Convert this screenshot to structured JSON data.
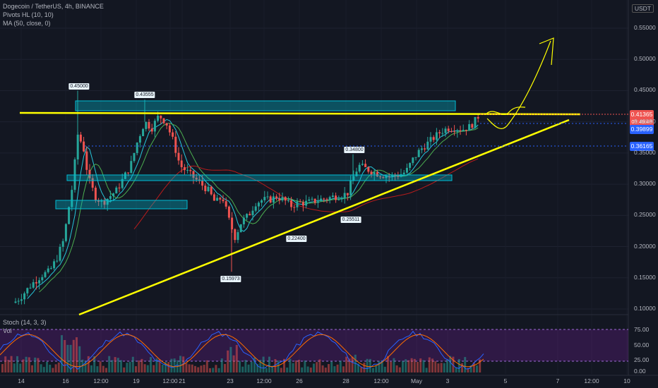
{
  "legend": {
    "title": "Dogecoin / TetherUS, 4h, BINANCE",
    "indicator1": "Pivots HL (10, 10)",
    "indicator2": "MA (50, close, 0)",
    "stoch": "Stoch (14, 3, 3)",
    "vol": "Vol"
  },
  "currency": "USDT",
  "price_badges": {
    "current": "0.41365",
    "countdown": "03:49:48",
    "level_a": "0.39899",
    "level_b": "0.36165"
  },
  "y_axis": [
    "0.55000",
    "0.50000",
    "0.45000",
    "0.40000",
    "0.35000",
    "0.30000",
    "0.25000",
    "0.20000",
    "0.15000",
    "0.10000"
  ],
  "stoch_axis": [
    "75.00",
    "50.00",
    "25.00",
    "0.00"
  ],
  "x_axis": [
    "14",
    "16",
    "12:00",
    "19",
    "12:00",
    "21",
    "23",
    "12:00",
    "26",
    "28",
    "12:00",
    "May",
    "3",
    "5",
    "7",
    "12:00",
    "10"
  ],
  "pivots": [
    "0.45000",
    "0.43555",
    "0.34800",
    "0.25511",
    "0.22400",
    "0.15973"
  ],
  "colors": {
    "background": "#131722",
    "up": "#26a69a",
    "down": "#ef5350",
    "trendline": "#ffff00",
    "zone": "#00bcd4",
    "stoch_bg": "#7b1fa2",
    "badge_current": "#ef5350",
    "badge_blue": "#2962ff"
  }
}
